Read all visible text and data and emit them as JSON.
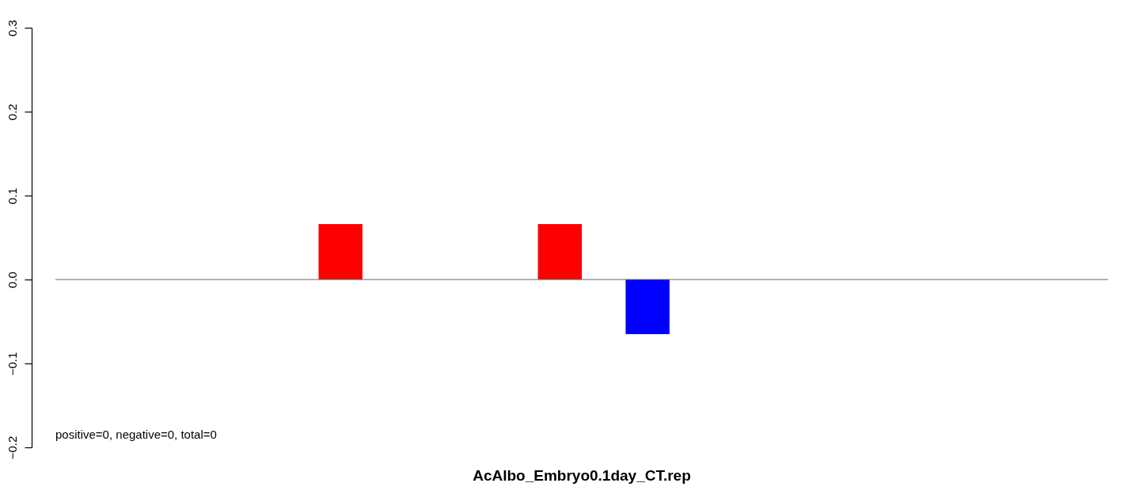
{
  "chart_data": {
    "type": "bar",
    "title": "AcAlbo_Embryo0.1day_CT.rep",
    "categories": [
      null,
      null,
      null,
      null,
      null,
      null,
      null,
      null,
      null,
      null,
      null,
      null,
      null,
      null,
      null,
      null,
      null,
      null,
      null,
      null,
      null,
      null,
      null,
      null
    ],
    "values": [
      0,
      0,
      0,
      0,
      0,
      0,
      0.066,
      0,
      0,
      0,
      0,
      0.066,
      0,
      -0.065,
      0,
      0,
      0,
      0,
      0,
      0,
      0,
      0,
      0,
      0
    ],
    "colors": [
      "#ff0000",
      "#ff0000",
      "#ff0000",
      "#ff0000",
      "#ff0000",
      "#ff0000",
      "#ff0000",
      "#ff0000",
      "#ff0000",
      "#ff0000",
      "#ff0000",
      "#ff0000",
      "#ff0000",
      "#0000ff",
      "#ff0000",
      "#ff0000",
      "#ff0000",
      "#ff0000",
      "#ff0000",
      "#ff0000",
      "#ff0000",
      "#ff0000",
      "#ff0000",
      "#ff0000"
    ],
    "ylim": [
      -0.2,
      0.3
    ],
    "yticks": [
      {
        "value": -0.2,
        "label": "−0.2"
      },
      {
        "value": -0.1,
        "label": "−0.1"
      },
      {
        "value": 0,
        "label": "0.0"
      },
      {
        "value": 0.1,
        "label": "0.1"
      },
      {
        "value": 0.2,
        "label": "0.2"
      },
      {
        "value": 0.3,
        "label": "0.3"
      }
    ],
    "annotations": [
      "positive=0, negative=0, total=0"
    ]
  }
}
